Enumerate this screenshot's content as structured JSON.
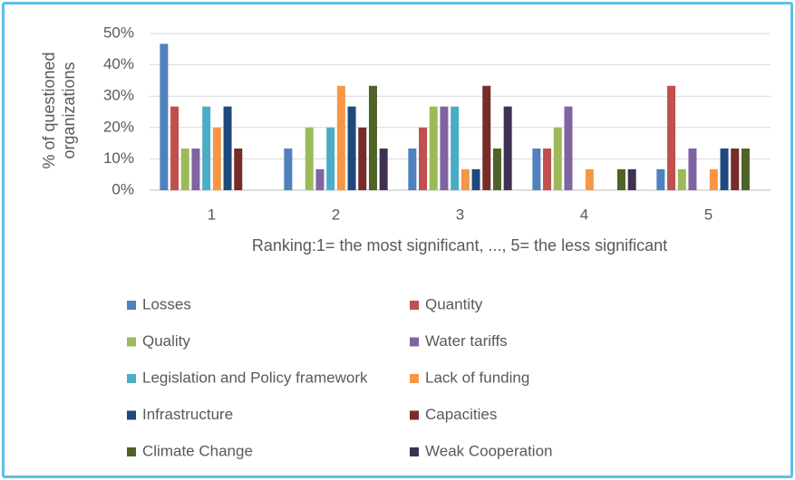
{
  "chart_data": {
    "type": "bar",
    "xlabel": "Ranking:1= the most significant, ..., 5= the less significant",
    "ylabel": "% of questioned organizations",
    "categories": [
      "1",
      "2",
      "3",
      "4",
      "5"
    ],
    "series": [
      {
        "name": "Losses",
        "color": "#4f81bd",
        "values": [
          46.7,
          13.3,
          13.3,
          13.3,
          6.7
        ]
      },
      {
        "name": "Quantity",
        "color": "#c0504d",
        "values": [
          26.7,
          0,
          20,
          13.3,
          33.3
        ]
      },
      {
        "name": "Quality",
        "color": "#9bbb59",
        "values": [
          13.3,
          20,
          26.7,
          20,
          6.7
        ]
      },
      {
        "name": "Water tariffs",
        "color": "#8064a2",
        "values": [
          13.3,
          6.7,
          26.7,
          26.7,
          13.3
        ]
      },
      {
        "name": "Legislation and Policy framework",
        "color": "#4bacc6",
        "values": [
          26.7,
          20,
          26.7,
          0,
          0
        ]
      },
      {
        "name": "Lack of funding",
        "color": "#f79646",
        "values": [
          20,
          33.3,
          6.7,
          6.7,
          6.7
        ]
      },
      {
        "name": "Infrastructure",
        "color": "#1f497d",
        "values": [
          26.7,
          26.7,
          6.7,
          0,
          13.3
        ]
      },
      {
        "name": "Capacities",
        "color": "#772c2a",
        "values": [
          13.3,
          20,
          33.3,
          0,
          13.3
        ]
      },
      {
        "name": "Climate Change",
        "color": "#4f6228",
        "values": [
          0,
          33.3,
          13.3,
          6.7,
          13.3
        ]
      },
      {
        "name": "Weak Cooperation",
        "color": "#403152",
        "values": [
          0,
          13.3,
          26.7,
          6.7,
          0
        ]
      }
    ],
    "ylim": [
      0,
      50
    ],
    "yticks": [
      {
        "value": 0,
        "label": "0%"
      },
      {
        "value": 10,
        "label": "10%"
      },
      {
        "value": 20,
        "label": "20%"
      },
      {
        "value": 30,
        "label": "30%"
      },
      {
        "value": 40,
        "label": "40%"
      },
      {
        "value": 50,
        "label": "50%"
      }
    ],
    "grid": true
  }
}
